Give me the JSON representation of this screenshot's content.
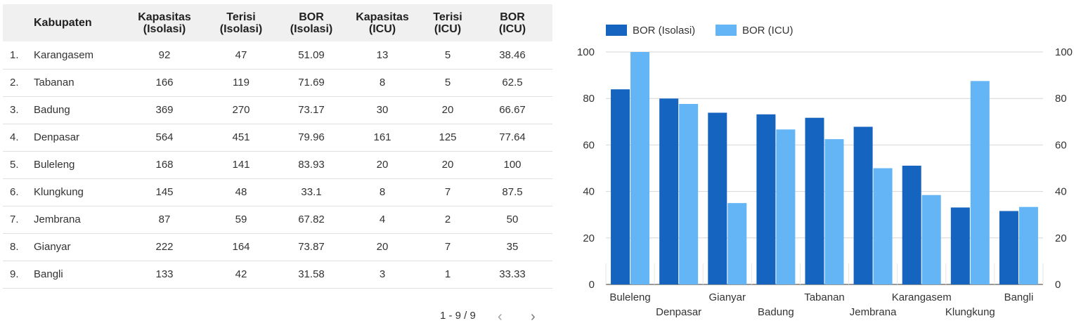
{
  "table": {
    "headers": [
      {
        "key": "idx",
        "lines": [
          "",
          ""
        ]
      },
      {
        "key": "kabupaten",
        "lines": [
          "Kabupaten",
          ""
        ]
      },
      {
        "key": "kap_iso",
        "lines": [
          "Kapasitas",
          "(Isolasi)"
        ]
      },
      {
        "key": "ter_iso",
        "lines": [
          "Terisi",
          "(Isolasi)"
        ]
      },
      {
        "key": "bor_iso",
        "lines": [
          "BOR",
          "(Isolasi)"
        ]
      },
      {
        "key": "kap_icu",
        "lines": [
          "Kapasitas",
          "(ICU)"
        ]
      },
      {
        "key": "ter_icu",
        "lines": [
          "Terisi",
          "(ICU)"
        ]
      },
      {
        "key": "bor_icu",
        "lines": [
          "BOR",
          "(ICU)"
        ]
      }
    ],
    "rows": [
      [
        "1.",
        "Karangasem",
        "92",
        "47",
        "51.09",
        "13",
        "5",
        "38.46"
      ],
      [
        "2.",
        "Tabanan",
        "166",
        "119",
        "71.69",
        "8",
        "5",
        "62.5"
      ],
      [
        "3.",
        "Badung",
        "369",
        "270",
        "73.17",
        "30",
        "20",
        "66.67"
      ],
      [
        "4.",
        "Denpasar",
        "564",
        "451",
        "79.96",
        "161",
        "125",
        "77.64"
      ],
      [
        "5.",
        "Buleleng",
        "168",
        "141",
        "83.93",
        "20",
        "20",
        "100"
      ],
      [
        "6.",
        "Klungkung",
        "145",
        "48",
        "33.1",
        "8",
        "7",
        "87.5"
      ],
      [
        "7.",
        "Jembrana",
        "87",
        "59",
        "67.82",
        "4",
        "2",
        "50"
      ],
      [
        "8.",
        "Gianyar",
        "222",
        "164",
        "73.87",
        "20",
        "7",
        "35"
      ],
      [
        "9.",
        "Bangli",
        "133",
        "42",
        "31.58",
        "3",
        "1",
        "33.33"
      ]
    ]
  },
  "pagination": {
    "label": "1 - 9 / 9",
    "prev_icon": "chevron-left-icon",
    "next_icon": "chevron-right-icon"
  },
  "chart_data": {
    "type": "bar",
    "title": "",
    "xlabel": "",
    "ylabel": "",
    "categories": [
      "Buleleng",
      "Denpasar",
      "Gianyar",
      "Badung",
      "Tabanan",
      "Jembrana",
      "Karangasem",
      "Klungkung",
      "Bangli"
    ],
    "series": [
      {
        "name": "BOR (Isolasi)",
        "color": "#1565c0",
        "values": [
          83.93,
          79.96,
          73.87,
          73.17,
          71.69,
          67.82,
          51.09,
          33.1,
          31.58
        ]
      },
      {
        "name": "BOR (ICU)",
        "color": "#64b5f6",
        "values": [
          100,
          77.64,
          35,
          66.67,
          62.5,
          50,
          38.46,
          87.5,
          33.33
        ]
      }
    ],
    "ylim": [
      0,
      100
    ],
    "yticks": [
      "0",
      "20",
      "40",
      "60",
      "80",
      "100"
    ],
    "grid": true,
    "legend_position": "top-left",
    "dual_axis": true
  }
}
